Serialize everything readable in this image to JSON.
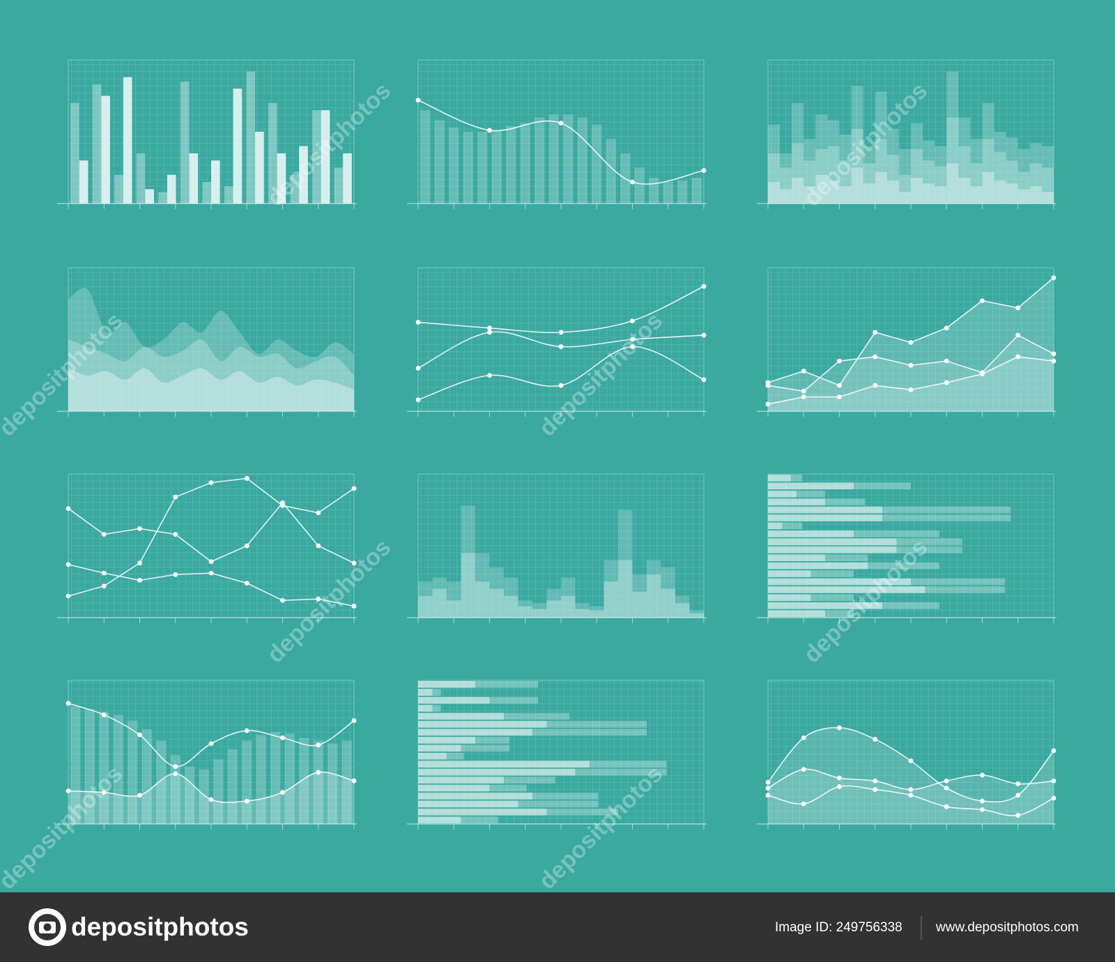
{
  "chart_data": [
    {
      "type": "bar",
      "layout": "group",
      "grid": true,
      "ylim": [
        0,
        100
      ],
      "series": [
        {
          "color": "rgba(255,255,255,0.35)",
          "values": [
            70,
            83,
            20,
            35,
            8,
            85,
            15,
            12,
            92,
            70,
            20,
            65,
            25
          ]
        },
        {
          "color": "rgba(255,255,255,0.8)",
          "values": [
            30,
            75,
            88,
            10,
            20,
            35,
            30,
            80,
            50,
            35,
            40,
            65,
            35
          ]
        }
      ]
    },
    {
      "type": "combo",
      "grid": true,
      "ylim": [
        0,
        100
      ],
      "series": [
        {
          "mark": "bar",
          "color": "rgba(255,255,255,0.22)",
          "values": [
            65,
            58,
            53,
            50,
            50,
            51,
            54,
            56,
            60,
            62,
            62,
            60,
            55,
            45,
            35,
            25,
            18,
            15,
            16,
            18
          ]
        },
        {
          "mark": "line",
          "smooth": true,
          "markers": true,
          "color": "rgba(255,255,255,0.85)",
          "values": [
            72,
            51,
            56,
            15,
            23
          ]
        }
      ]
    },
    {
      "type": "bar",
      "layout": "overlap",
      "grid": true,
      "ylim": [
        0,
        100
      ],
      "series": [
        {
          "color": "rgba(255,255,255,0.22)",
          "values": [
            55,
            35,
            70,
            45,
            62,
            58,
            48,
            82,
            40,
            78,
            52,
            38,
            56,
            44,
            40,
            92,
            60,
            45,
            70,
            50,
            46,
            38,
            42,
            40
          ]
        },
        {
          "color": "rgba(255,255,255,0.25)",
          "values": [
            35,
            25,
            42,
            30,
            38,
            40,
            30,
            52,
            28,
            45,
            34,
            20,
            38,
            30,
            26,
            60,
            40,
            28,
            45,
            36,
            30,
            22,
            28,
            25
          ]
        },
        {
          "color": "rgba(255,255,255,0.35)",
          "values": [
            15,
            10,
            18,
            12,
            20,
            16,
            12,
            25,
            14,
            22,
            16,
            8,
            18,
            14,
            12,
            28,
            18,
            12,
            22,
            16,
            14,
            10,
            12,
            8
          ]
        }
      ]
    },
    {
      "type": "area",
      "grid": true,
      "ylim": [
        0,
        100
      ],
      "series": [
        {
          "smooth": true,
          "fill": "rgba(255,255,255,0.22)",
          "values": [
            78,
            85,
            55,
            62,
            45,
            50,
            62,
            55,
            70,
            55,
            40,
            50,
            42,
            38,
            48,
            40
          ]
        },
        {
          "smooth": true,
          "fill": "rgba(255,255,255,0.25)",
          "values": [
            50,
            45,
            40,
            35,
            45,
            38,
            42,
            50,
            35,
            45,
            38,
            40,
            30,
            35,
            38,
            25
          ]
        },
        {
          "smooth": true,
          "fill": "rgba(255,255,255,0.35)",
          "values": [
            30,
            25,
            28,
            22,
            30,
            20,
            25,
            30,
            22,
            28,
            20,
            24,
            18,
            22,
            20,
            15
          ]
        }
      ]
    },
    {
      "type": "line",
      "grid": true,
      "ylim": [
        0,
        100
      ],
      "series": [
        {
          "smooth": true,
          "markers": true,
          "color": "rgba(255,255,255,0.85)",
          "values": [
            62,
            58,
            55,
            63,
            87
          ]
        },
        {
          "smooth": true,
          "markers": true,
          "color": "rgba(255,255,255,0.85)",
          "values": [
            30,
            55,
            45,
            50,
            53
          ]
        },
        {
          "smooth": true,
          "markers": true,
          "color": "rgba(255,255,255,0.85)",
          "values": [
            8,
            25,
            18,
            45,
            22
          ]
        }
      ]
    },
    {
      "type": "area",
      "grid": true,
      "ylim": [
        0,
        100
      ],
      "series": [
        {
          "smooth": false,
          "markers": true,
          "color": "rgba(255,255,255,0.85)",
          "fill": "rgba(255,255,255,0.18)",
          "values": [
            20,
            28,
            18,
            55,
            48,
            58,
            77,
            72,
            93
          ]
        },
        {
          "smooth": false,
          "markers": true,
          "color": "rgba(255,255,255,0.85)",
          "fill": "rgba(255,255,255,0.15)",
          "values": [
            18,
            14,
            35,
            38,
            32,
            35,
            27,
            53,
            40
          ]
        },
        {
          "smooth": false,
          "markers": true,
          "color": "rgba(255,255,255,0.85)",
          "fill": "rgba(255,255,255,0.15)",
          "values": [
            5,
            10,
            10,
            18,
            15,
            20,
            26,
            38,
            35
          ]
        }
      ]
    },
    {
      "type": "line",
      "grid": true,
      "ylim": [
        0,
        100
      ],
      "series": [
        {
          "smooth": false,
          "markers": true,
          "color": "rgba(255,255,255,0.85)",
          "values": [
            76,
            58,
            62,
            58,
            39,
            50,
            80,
            50,
            38
          ]
        },
        {
          "smooth": false,
          "markers": true,
          "color": "rgba(255,255,255,0.85)",
          "values": [
            37,
            31,
            26,
            30,
            31,
            24,
            12,
            13,
            8
          ]
        },
        {
          "smooth": false,
          "markers": true,
          "color": "rgba(255,255,255,0.85)",
          "values": [
            15,
            22,
            38,
            84,
            94,
            97,
            78,
            73,
            90
          ]
        }
      ]
    },
    {
      "type": "bar",
      "layout": "overlap",
      "grid": true,
      "ylim": [
        0,
        100
      ],
      "series": [
        {
          "color": "rgba(255,255,255,0.2)",
          "values": [
            25,
            28,
            25,
            78,
            45,
            35,
            28,
            12,
            10,
            20,
            28,
            10,
            8,
            40,
            75,
            30,
            40,
            35,
            15,
            5
          ]
        },
        {
          "color": "rgba(255,255,255,0.3)",
          "values": [
            15,
            20,
            12,
            45,
            25,
            20,
            15,
            8,
            6,
            12,
            15,
            6,
            5,
            25,
            40,
            18,
            30,
            20,
            10,
            3
          ]
        }
      ]
    },
    {
      "type": "hbar",
      "layout": "overlap",
      "grid": true,
      "xlim": [
        0,
        100
      ],
      "series": [
        {
          "color": "rgba(255,255,255,0.3)",
          "values": [
            12,
            50,
            20,
            34,
            85,
            85,
            12,
            60,
            68,
            68,
            35,
            60,
            30,
            83,
            83,
            30,
            60,
            30
          ]
        },
        {
          "color": "rgba(255,255,255,0.45)",
          "values": [
            8,
            30,
            10,
            20,
            40,
            40,
            5,
            30,
            45,
            45,
            20,
            35,
            15,
            50,
            55,
            15,
            40,
            20
          ]
        }
      ]
    },
    {
      "type": "combo",
      "grid": true,
      "ylim": [
        0,
        100
      ],
      "series": [
        {
          "mark": "bar",
          "color": "rgba(255,255,255,0.22)",
          "values": [
            82,
            80,
            78,
            76,
            72,
            66,
            58,
            48,
            40,
            38,
            45,
            52,
            58,
            62,
            64,
            63,
            60,
            58,
            56,
            58
          ]
        },
        {
          "mark": "line",
          "smooth": true,
          "markers": true,
          "color": "rgba(255,255,255,0.85)",
          "values": [
            84,
            76,
            62,
            40,
            56,
            65,
            60,
            55,
            72
          ]
        },
        {
          "mark": "line",
          "smooth": true,
          "markers": true,
          "color": "rgba(255,255,255,0.85)",
          "fill": "rgba(255,255,255,0.2)",
          "values": [
            23,
            22,
            20,
            35,
            17,
            16,
            22,
            36,
            30
          ]
        }
      ]
    },
    {
      "type": "hbar",
      "layout": "overlap",
      "grid": true,
      "xlim": [
        0,
        100
      ],
      "series": [
        {
          "color": "rgba(255,255,255,0.3)",
          "values": [
            42,
            8,
            42,
            8,
            53,
            80,
            80,
            32,
            32,
            16,
            87,
            87,
            48,
            38,
            63,
            63,
            70,
            28
          ]
        },
        {
          "color": "rgba(255,255,255,0.45)",
          "values": [
            20,
            5,
            25,
            5,
            30,
            45,
            40,
            20,
            15,
            10,
            60,
            55,
            30,
            25,
            40,
            35,
            45,
            15
          ]
        }
      ]
    },
    {
      "type": "line",
      "grid": true,
      "ylim": [
        0,
        100
      ],
      "series": [
        {
          "smooth": true,
          "markers": true,
          "color": "rgba(255,255,255,0.85)",
          "fill": "rgba(255,255,255,0.15)",
          "values": [
            29,
            60,
            67,
            59,
            44,
            25,
            16,
            20,
            51
          ]
        },
        {
          "smooth": true,
          "markers": true,
          "color": "rgba(255,255,255,0.85)",
          "fill": "rgba(255,255,255,0.15)",
          "values": [
            25,
            38,
            32,
            30,
            24,
            30,
            34,
            28,
            30
          ]
        },
        {
          "smooth": true,
          "markers": true,
          "color": "rgba(255,255,255,0.85)",
          "values": [
            20,
            14,
            26,
            24,
            20,
            12,
            10,
            6,
            18
          ]
        }
      ]
    }
  ],
  "watermark": "depositphotos",
  "footer": {
    "brand": "depositphotos",
    "image_id": "Image ID: 249756338",
    "url": "www.depositphotos.com"
  }
}
